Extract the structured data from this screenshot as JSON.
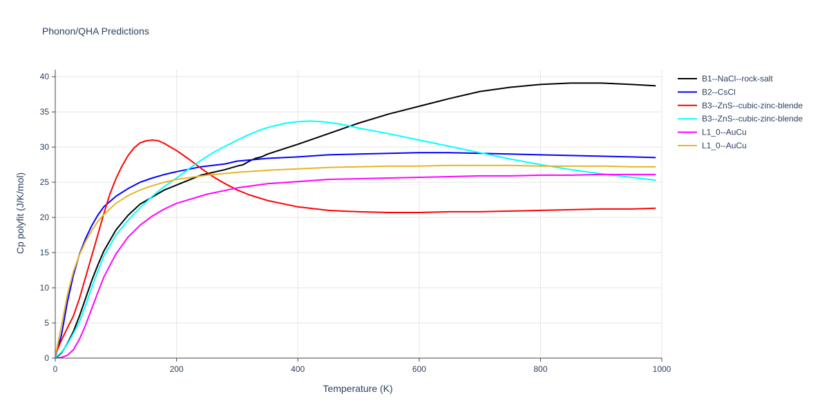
{
  "chart_data": {
    "type": "line",
    "title": "Phonon/QHA Predictions",
    "xlabel": "Temperature (K)",
    "ylabel": "Cp polyfit (J/K/mol)",
    "xlim": [
      0,
      1000
    ],
    "ylim": [
      0,
      41
    ],
    "xticks": [
      0,
      200,
      400,
      600,
      800,
      1000
    ],
    "yticks": [
      0,
      5,
      10,
      15,
      20,
      25,
      30,
      35,
      40
    ],
    "grid": true,
    "legend_position": "right",
    "series": [
      {
        "name": "B1--NaCl--rock-salt",
        "color": "#000000",
        "x": [
          0,
          10,
          20,
          30,
          40,
          50,
          60,
          70,
          80,
          100,
          120,
          140,
          160,
          180,
          200,
          240,
          280,
          300,
          310,
          320,
          330,
          340,
          350,
          400,
          450,
          500,
          550,
          600,
          650,
          700,
          750,
          800,
          850,
          900,
          950,
          990
        ],
        "y": [
          0,
          0.7,
          2.1,
          3.8,
          6.0,
          8.5,
          11.0,
          13.2,
          15.2,
          18.2,
          20.3,
          21.9,
          22.9,
          23.9,
          24.6,
          26.0,
          26.8,
          27.3,
          27.5,
          28.0,
          28.4,
          28.6,
          29.0,
          30.4,
          31.9,
          33.4,
          34.7,
          35.8,
          36.9,
          37.9,
          38.5,
          38.9,
          39.1,
          39.1,
          38.9,
          38.7
        ]
      },
      {
        "name": "B2--CsCl",
        "color": "#0000ff",
        "x": [
          0,
          10,
          20,
          30,
          40,
          50,
          60,
          70,
          80,
          100,
          120,
          140,
          160,
          180,
          200,
          240,
          280,
          300,
          350,
          400,
          450,
          500,
          550,
          600,
          650,
          700,
          750,
          800,
          850,
          900,
          950,
          990
        ],
        "y": [
          0.2,
          3.2,
          8.0,
          11.8,
          14.8,
          17.0,
          18.8,
          20.3,
          21.5,
          23.0,
          24.1,
          25.0,
          25.6,
          26.1,
          26.5,
          27.2,
          27.6,
          28.0,
          28.4,
          28.6,
          28.9,
          29.0,
          29.1,
          29.2,
          29.2,
          29.1,
          29.0,
          28.9,
          28.8,
          28.7,
          28.6,
          28.5
        ]
      },
      {
        "name": "B3--ZnS--cubic-zinc-blende",
        "color": "#ff0000",
        "x": [
          0,
          10,
          20,
          30,
          40,
          50,
          60,
          70,
          80,
          90,
          100,
          110,
          120,
          130,
          140,
          150,
          160,
          170,
          180,
          200,
          220,
          240,
          260,
          280,
          300,
          320,
          350,
          400,
          450,
          500,
          550,
          600,
          650,
          700,
          750,
          800,
          850,
          900,
          950,
          990
        ],
        "y": [
          0.5,
          2.5,
          4.3,
          6.0,
          8.5,
          11.5,
          14.5,
          17.5,
          20.5,
          23.3,
          25.5,
          27.3,
          28.8,
          29.9,
          30.6,
          30.9,
          31.0,
          30.9,
          30.5,
          29.5,
          28.3,
          27.0,
          25.8,
          24.8,
          23.9,
          23.2,
          22.4,
          21.5,
          21.0,
          20.8,
          20.7,
          20.7,
          20.8,
          20.8,
          20.9,
          21.0,
          21.1,
          21.2,
          21.2,
          21.3
        ]
      },
      {
        "name": "B3--ZnS--cubic-zinc-blende",
        "color": "#00ffff",
        "x": [
          0,
          10,
          20,
          30,
          40,
          50,
          60,
          70,
          80,
          100,
          120,
          140,
          160,
          180,
          200,
          220,
          240,
          260,
          280,
          300,
          320,
          340,
          360,
          380,
          400,
          420,
          440,
          460,
          480,
          500,
          550,
          600,
          650,
          700,
          750,
          800,
          850,
          900,
          950,
          990
        ],
        "y": [
          0.1,
          0.8,
          2.0,
          3.5,
          5.2,
          7.5,
          10.0,
          12.3,
          14.5,
          17.5,
          19.6,
          21.4,
          23.0,
          24.4,
          25.6,
          26.9,
          28.1,
          29.2,
          30.1,
          31.0,
          31.8,
          32.5,
          33.0,
          33.4,
          33.6,
          33.7,
          33.6,
          33.4,
          33.1,
          32.7,
          31.9,
          31.0,
          30.1,
          29.2,
          28.3,
          27.5,
          26.8,
          26.2,
          25.7,
          25.3
        ]
      },
      {
        "name": "L1_0--AuCu",
        "color": "#ff00ff",
        "x": [
          0,
          10,
          20,
          30,
          40,
          50,
          60,
          70,
          80,
          100,
          120,
          140,
          160,
          180,
          200,
          250,
          300,
          350,
          400,
          450,
          500,
          550,
          600,
          650,
          700,
          750,
          800,
          850,
          900,
          950,
          990
        ],
        "y": [
          0,
          0.1,
          0.4,
          1.2,
          2.7,
          4.7,
          7.0,
          9.3,
          11.5,
          14.8,
          17.2,
          18.9,
          20.2,
          21.2,
          22.0,
          23.3,
          24.2,
          24.8,
          25.1,
          25.4,
          25.5,
          25.6,
          25.7,
          25.8,
          25.9,
          25.9,
          26.0,
          26.0,
          26.1,
          26.1,
          26.1
        ]
      },
      {
        "name": "L1_0--AuCu",
        "color": "#e6b422",
        "x": [
          0,
          10,
          20,
          30,
          40,
          50,
          60,
          70,
          80,
          100,
          120,
          140,
          160,
          180,
          200,
          250,
          300,
          350,
          400,
          450,
          500,
          550,
          600,
          650,
          700,
          750,
          800,
          850,
          900,
          950,
          990
        ],
        "y": [
          0.3,
          4.5,
          9.0,
          12.3,
          14.7,
          16.6,
          18.1,
          19.4,
          20.4,
          22.0,
          23.1,
          23.9,
          24.5,
          25.0,
          25.4,
          26.0,
          26.4,
          26.7,
          26.9,
          27.1,
          27.2,
          27.3,
          27.3,
          27.4,
          27.4,
          27.4,
          27.3,
          27.3,
          27.3,
          27.2,
          27.2
        ]
      }
    ]
  }
}
